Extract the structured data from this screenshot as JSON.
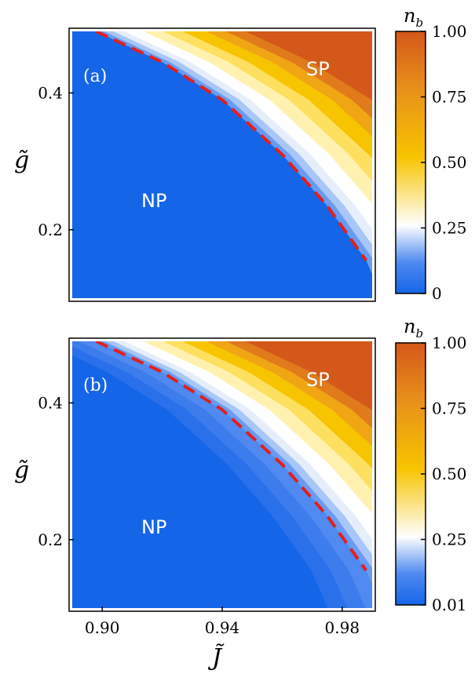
{
  "chart_data": [
    {
      "type": "heatmap",
      "panel_label": "(a)",
      "xlabel": "",
      "ylabel": "g̃",
      "xlim": [
        0.89,
        0.99
      ],
      "ylim": [
        0.1,
        0.49
      ],
      "yticks": [
        "0.2",
        "0.4"
      ],
      "xticks": [],
      "regions": [
        "NP",
        "SP"
      ],
      "boundary": {
        "x": [
          0.898,
          0.92,
          0.94,
          0.96,
          0.975,
          0.988
        ],
        "y": [
          0.49,
          0.445,
          0.39,
          0.31,
          0.235,
          0.155
        ]
      },
      "colorbar": {
        "title": "n",
        "subscript": "b",
        "ticks": [
          "1.00",
          "0.75",
          "0.50",
          "0.25",
          "0"
        ]
      }
    },
    {
      "type": "heatmap",
      "panel_label": "(b)",
      "xlabel": "J̃",
      "ylabel": "g̃",
      "xlim": [
        0.89,
        0.99
      ],
      "ylim": [
        0.1,
        0.49
      ],
      "yticks": [
        "0.2",
        "0.4"
      ],
      "xticks": [
        "0.90",
        "0.94",
        "0.98"
      ],
      "regions": [
        "NP",
        "SP"
      ],
      "boundary": {
        "x": [
          0.898,
          0.92,
          0.94,
          0.96,
          0.975,
          0.988
        ],
        "y": [
          0.49,
          0.445,
          0.39,
          0.31,
          0.235,
          0.155
        ]
      },
      "colorbar": {
        "title": "n",
        "subscript": "b",
        "ticks": [
          "1.00",
          "0.75",
          "0.50",
          "0.25",
          "0.01"
        ]
      }
    }
  ],
  "colors": {
    "np_blue": "#1565e8",
    "white": "#ffffff",
    "yellow": "#f7c400",
    "orange": "#d4581a",
    "boundary": "#e0201e"
  }
}
